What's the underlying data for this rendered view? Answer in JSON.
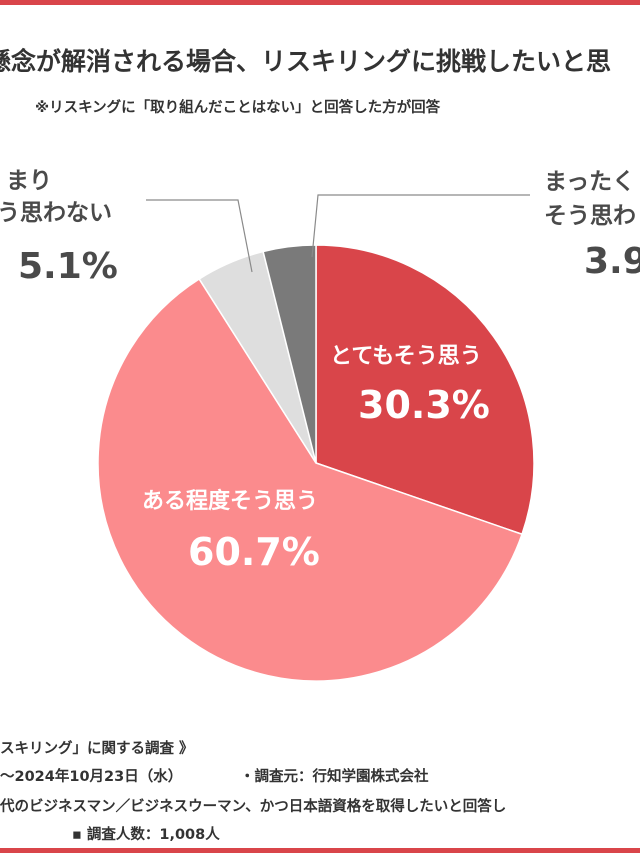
{
  "header": {
    "title": "懸念が解消される場合、リスキリングに挑戦したいと思",
    "note": "※リスキングに「取り組んだことはない」と回答した方が回答"
  },
  "chart_data": {
    "type": "pie",
    "title": "懸念が解消される場合、リスキリングに挑戦したいと思",
    "start": "12 o'clock, clockwise",
    "slices": [
      {
        "label": "とてもそう思う",
        "value": 30.3,
        "value_label": "30.3%",
        "color": "#d9454a"
      },
      {
        "label": "ある程度そう思う",
        "value": 60.7,
        "value_label": "60.7%",
        "color": "#fb8b8d"
      },
      {
        "label_lines": [
          "まり",
          "う思わない"
        ],
        "value": 5.1,
        "value_label": "5.1%",
        "color": "#dedede"
      },
      {
        "label_lines": [
          "まったく",
          "そう思わ"
        ],
        "value": 3.9,
        "value_label": "3.9",
        "color": "#7a7a7a"
      }
    ]
  },
  "footer": {
    "survey_title": "スキリング」に関する調査 》",
    "period": "〜2024年10月23日（水）",
    "org": "・調査元：行知学園株式会社",
    "target": "代のビジネスマン／ビジネスウーマン、かつ日本語資格を取得したいと回答し",
    "count": "▪ 調査人数：1,008人"
  }
}
